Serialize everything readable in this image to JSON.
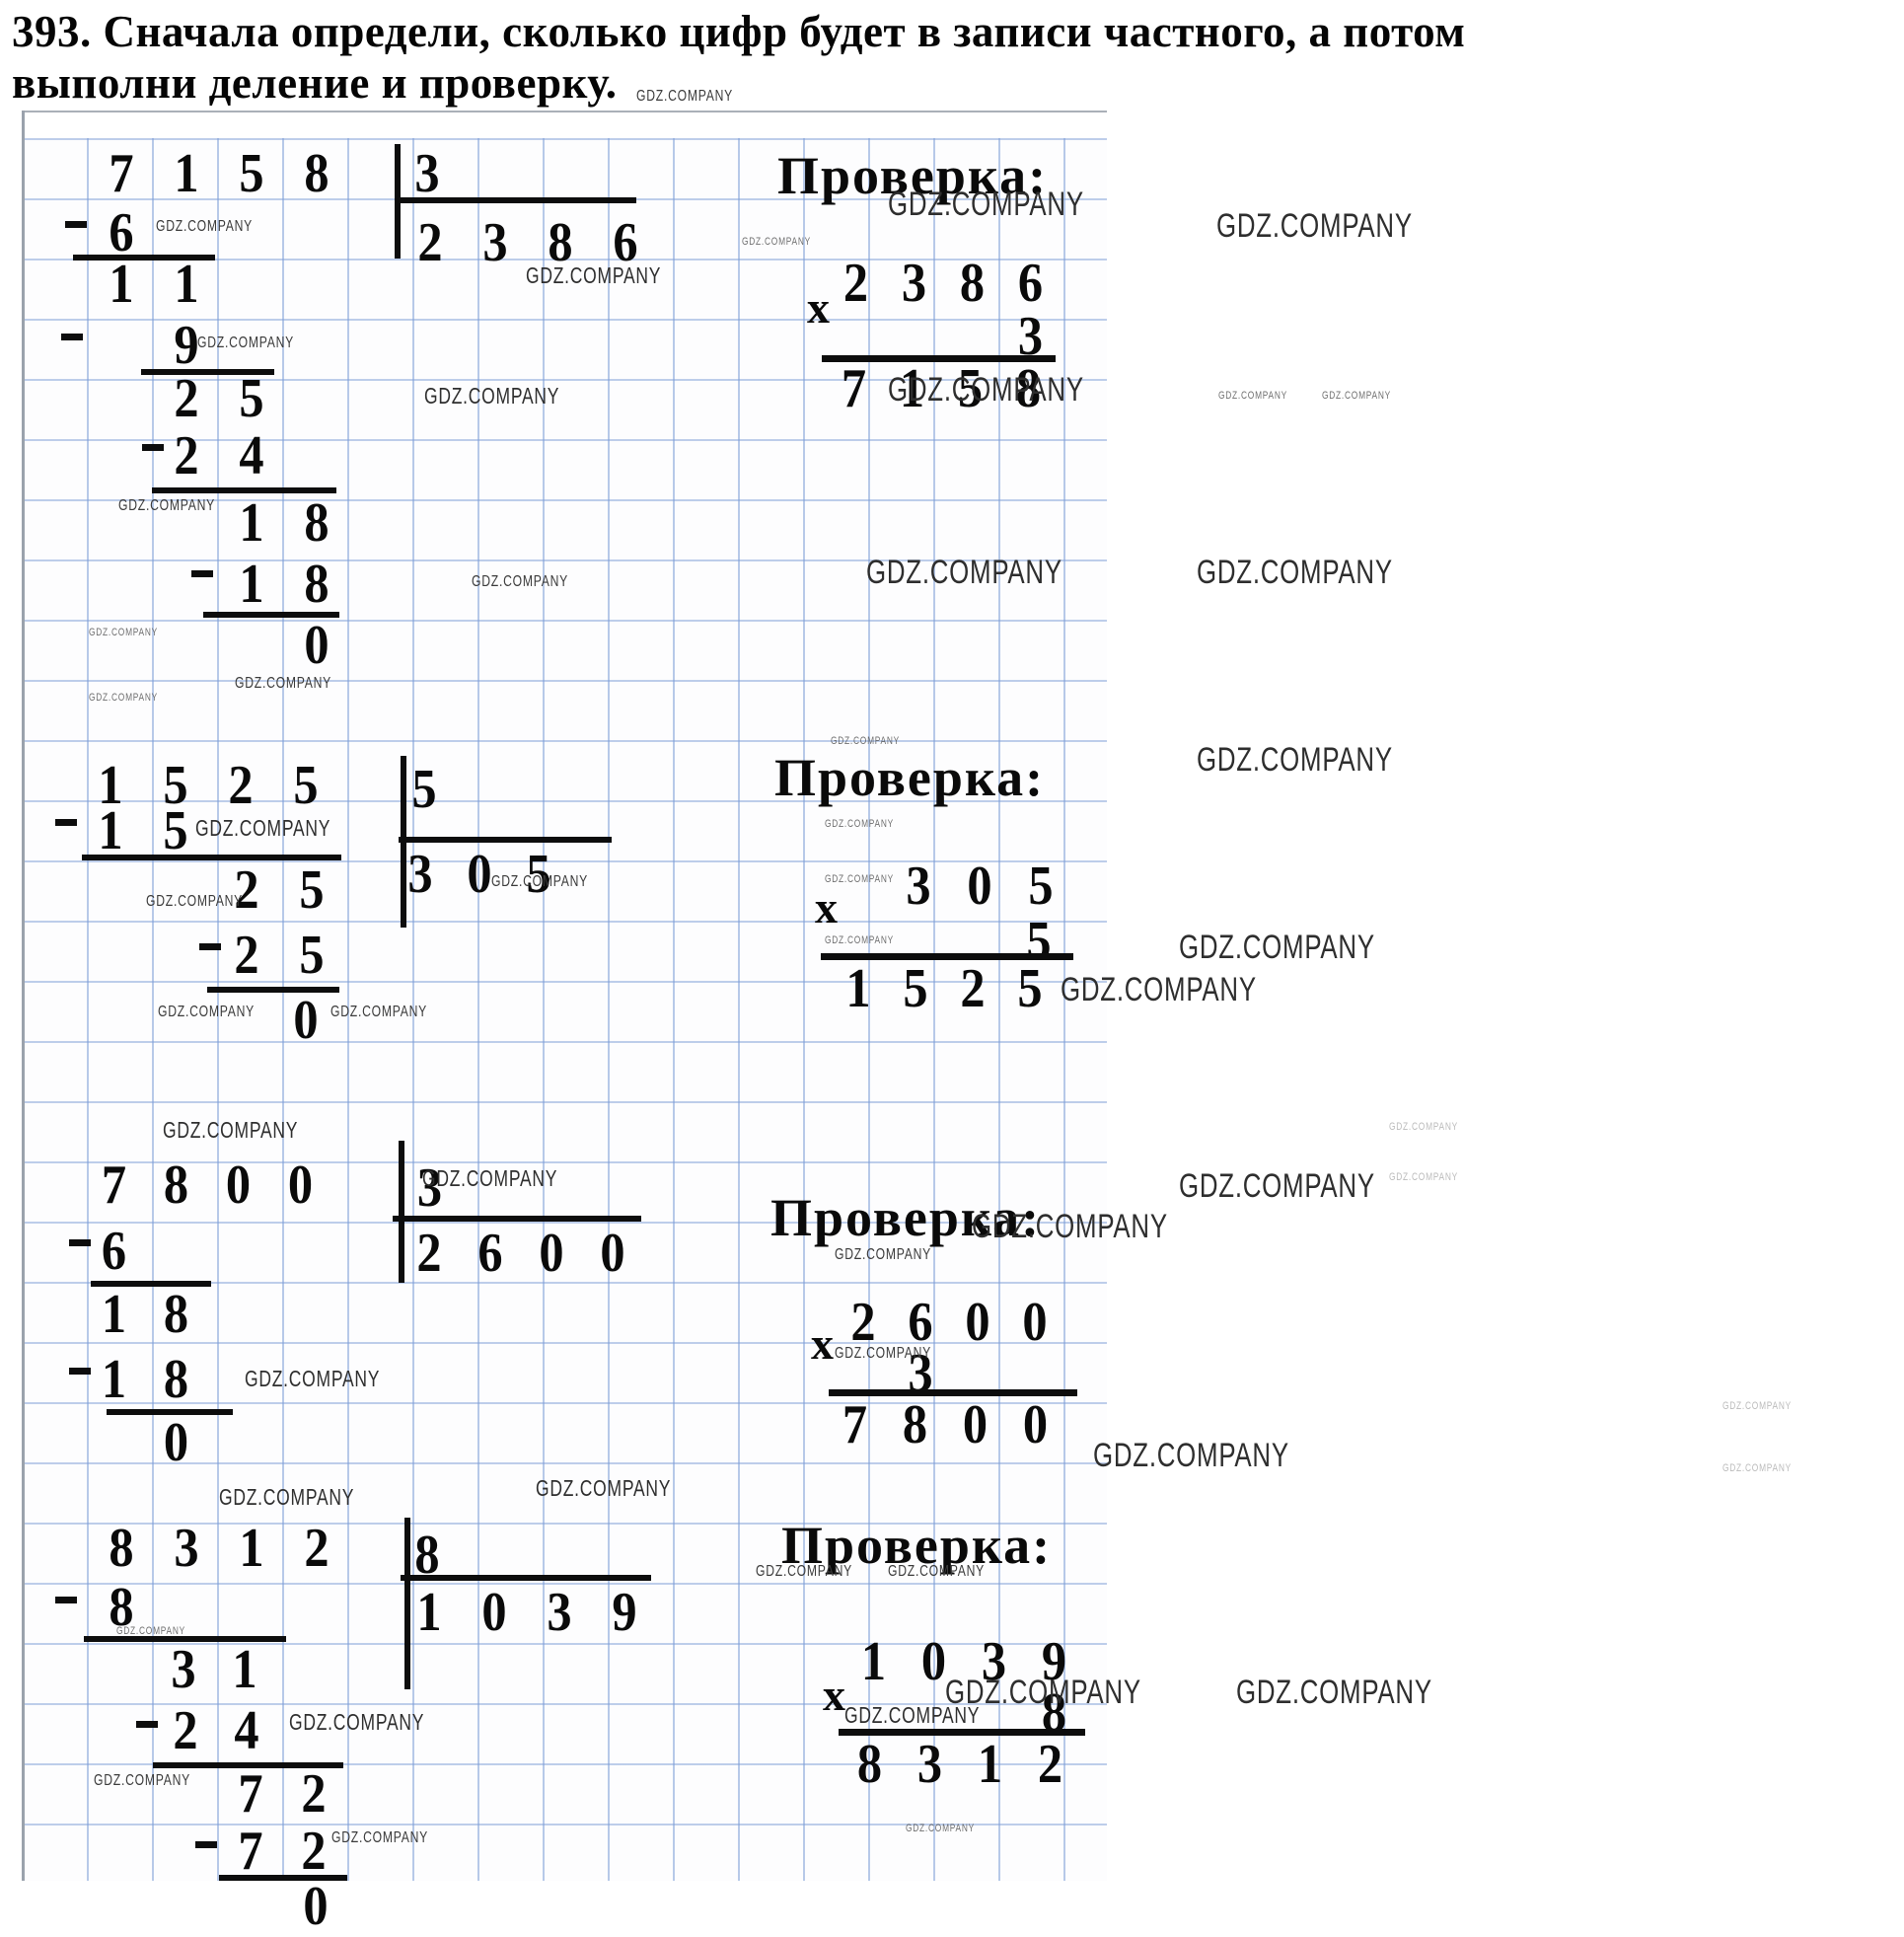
{
  "page": {
    "watermark": "GDZ.COMPANY"
  },
  "title": {
    "line1": "393. Сначала определи, сколько цифр будет в записи частного, а потом",
    "line2": "выполни деление и проверку."
  },
  "multiply_sign": "x",
  "problems": [
    {
      "division": {
        "dividend": "7158",
        "divisor": "3",
        "quotient": "2386",
        "steps": [
          "6",
          "11",
          "9",
          "25",
          "24",
          "18",
          "18",
          "0"
        ]
      },
      "check": {
        "label": "Проверка:",
        "multiplicand": "2386",
        "multiplier": "3",
        "product": "7158"
      }
    },
    {
      "division": {
        "dividend": "1525",
        "divisor": "5",
        "quotient": "305",
        "steps": [
          "15",
          "25",
          "25",
          "0"
        ]
      },
      "check": {
        "label": "Проверка:",
        "multiplicand": "305",
        "multiplier": "5",
        "product": "1525"
      }
    },
    {
      "division": {
        "dividend": "7800",
        "divisor": "3",
        "quotient": "2600",
        "steps": [
          "6",
          "18",
          "18",
          "0"
        ]
      },
      "check": {
        "label": "Проверка:",
        "multiplicand": "2600",
        "multiplier": "3",
        "product": "7800"
      }
    },
    {
      "division": {
        "dividend": "8312",
        "divisor": "8",
        "quotient": "1039",
        "steps": [
          "8",
          "31",
          "24",
          "72",
          "72",
          "0"
        ]
      },
      "check": {
        "label": "Проверка:",
        "multiplicand": "1039",
        "multiplier": "8",
        "product": "8312"
      }
    }
  ]
}
